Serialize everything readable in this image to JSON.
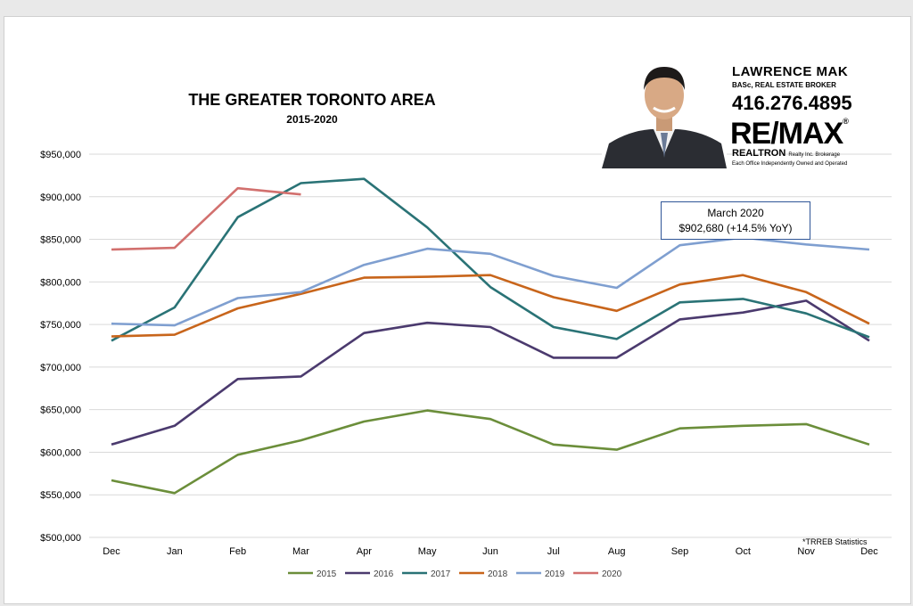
{
  "chart_data": {
    "type": "line",
    "title": "THE GREATER TORONTO AREA",
    "subtitle": "2015-2020",
    "categories": [
      "Dec",
      "Jan",
      "Feb",
      "Mar",
      "Apr",
      "May",
      "Jun",
      "Jul",
      "Aug",
      "Sep",
      "Oct",
      "Nov",
      "Dec"
    ],
    "y_ticks": [
      "$500,000",
      "$550,000",
      "$600,000",
      "$650,000",
      "$700,000",
      "$750,000",
      "$800,000",
      "$850,000",
      "$900,000",
      "$950,000"
    ],
    "ylim": [
      500000,
      950000
    ],
    "grid": true,
    "legend_position": "bottom",
    "series": [
      {
        "name": "2015",
        "color": "#6b8e3a",
        "values": [
          567000,
          552000,
          597000,
          614000,
          636000,
          649000,
          639000,
          609000,
          603000,
          628000,
          631000,
          633000,
          609000
        ]
      },
      {
        "name": "2016",
        "color": "#4b3a6e",
        "values": [
          609000,
          631000,
          686000,
          689000,
          740000,
          752000,
          747000,
          711000,
          711000,
          756000,
          764000,
          778000,
          731000
        ]
      },
      {
        "name": "2017",
        "color": "#2a7376",
        "values": [
          731000,
          770000,
          876000,
          916000,
          921000,
          864000,
          794000,
          747000,
          733000,
          776000,
          780000,
          763000,
          735000
        ]
      },
      {
        "name": "2018",
        "color": "#c8651b",
        "values": [
          736000,
          738000,
          769000,
          786000,
          805000,
          806000,
          808000,
          782000,
          766000,
          797000,
          808000,
          788000,
          751000
        ]
      },
      {
        "name": "2019",
        "color": "#7f9fd0",
        "values": [
          751000,
          749000,
          781000,
          788000,
          820000,
          839000,
          833000,
          807000,
          793000,
          843000,
          852000,
          844000,
          838000
        ]
      },
      {
        "name": "2020",
        "color": "#d2706e",
        "values": [
          838000,
          840000,
          910000,
          902680,
          null,
          null,
          null,
          null,
          null,
          null,
          null,
          null,
          null
        ]
      }
    ],
    "annotation": {
      "line1": "March 2020",
      "line2": "$902,680  (+14.5% YoY)"
    },
    "source": "*TRREB Statistics"
  },
  "broker": {
    "name": "LAWRENCE MAK",
    "title": "BASc, REAL ESTATE BROKER",
    "phone": "416.276.4895",
    "brand": "RE/MAX",
    "brokerage": "REALTRON",
    "brokerage_suffix": "Realty Inc. Brokerage",
    "tagline": "Each Office Independently Owned and Operated"
  }
}
